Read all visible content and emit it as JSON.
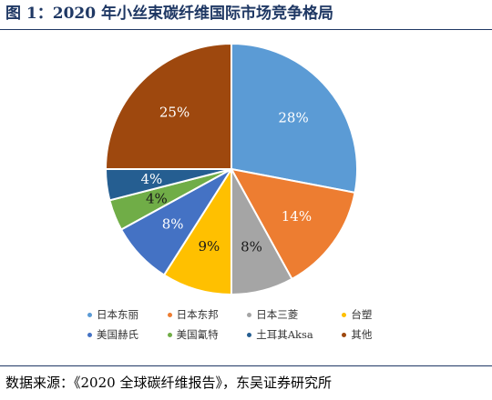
{
  "title": "图 1：2020 年小丝束碳纤维国际市场竞争格局",
  "source": "数据来源：《2020 全球碳纤维报告》，东吴证券研究所",
  "chart_data": {
    "type": "pie",
    "categories": [
      "日本东丽",
      "日本东邦",
      "日本三菱",
      "台塑",
      "美国赫氏",
      "美国氰特",
      "土耳其Aksa",
      "其他"
    ],
    "values": [
      28,
      14,
      8,
      9,
      8,
      4,
      4,
      25
    ],
    "labels": [
      "28%",
      "14%",
      "8%",
      "9%",
      "8%",
      "4%",
      "4%",
      "25%"
    ],
    "colors": [
      "#5b9bd5",
      "#ed7d31",
      "#a5a5a5",
      "#ffc000",
      "#4472c4",
      "#70ad47",
      "#255e91",
      "#9e480e"
    ],
    "legend": "bottom",
    "start": "12 o'clock",
    "direction": "clockwise"
  }
}
